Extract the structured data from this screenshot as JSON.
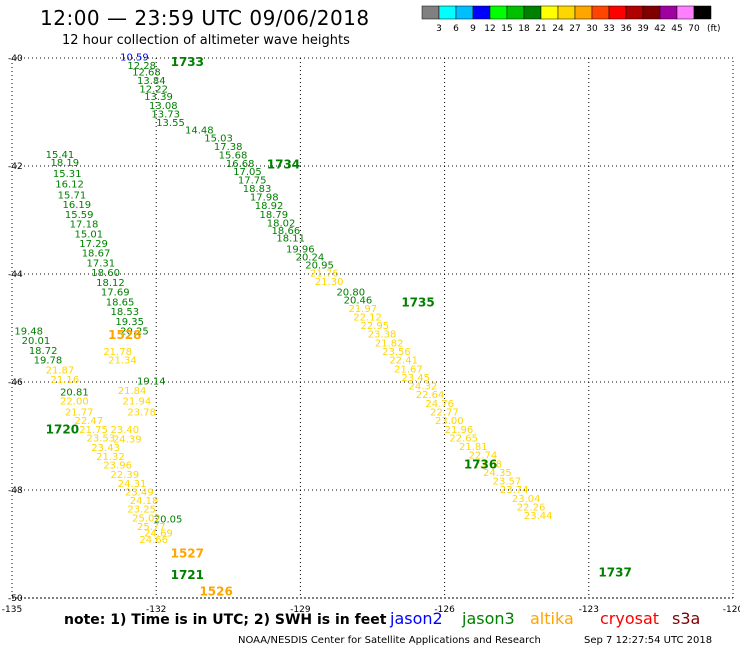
{
  "header": {
    "title": "12:00 — 23:59 UTC 09/06/2018",
    "subtitle": "12 hour collection of altimeter wave heights"
  },
  "legend_scale": {
    "unit": "(ft)",
    "ticks": [
      "3",
      "6",
      "9",
      "12",
      "15",
      "18",
      "21",
      "24",
      "27",
      "30",
      "33",
      "36",
      "39",
      "42",
      "45",
      "70"
    ],
    "colors": [
      "#808080",
      "#00ffff",
      "#00bfff",
      "#0000ff",
      "#00ff00",
      "#00c000",
      "#008000",
      "#ffff00",
      "#ffd700",
      "#ffa500",
      "#ff4500",
      "#ff0000",
      "#b00000",
      "#800000",
      "#a000a0",
      "#ff80ff",
      "#000000"
    ]
  },
  "footer": {
    "note": "note: 1) Time is in UTC; 2) SWH is in feet",
    "credit": "NOAA/NESDIS Center for Satellite Applications and Research",
    "timestamp": "Sep  7 12:27:54 UTC 2018"
  },
  "satellites": [
    {
      "name": "jason2",
      "color": "#0000ff"
    },
    {
      "name": "jason3",
      "color": "#008000"
    },
    {
      "name": "altika",
      "color": "#ffa500"
    },
    {
      "name": "cryosat",
      "color": "#ff0000"
    },
    {
      "name": "s3a",
      "color": "#800000"
    }
  ],
  "chart_data": {
    "type": "scatter",
    "xlim": [
      -135,
      -120
    ],
    "ylim": [
      -50,
      -40
    ],
    "x_ticks": [
      "-135",
      "-132",
      "-129",
      "-126",
      "-123",
      "-120"
    ],
    "y_ticks": [
      "-40",
      "-42",
      "-44",
      "-46",
      "-48",
      "-50"
    ],
    "grid": true,
    "passes": [
      {
        "time": "1733",
        "color": "#008000",
        "lon": -131.7,
        "lat": -40.15
      },
      {
        "time": "1734",
        "color": "#008000",
        "lon": -129.7,
        "lat": -42.05
      },
      {
        "time": "1735",
        "color": "#008000",
        "lon": -126.9,
        "lat": -44.6
      },
      {
        "time": "1736",
        "color": "#008000",
        "lon": -125.6,
        "lat": -47.6
      },
      {
        "time": "1737",
        "color": "#008000",
        "lon": -122.8,
        "lat": -49.6
      },
      {
        "time": "1528",
        "color": "#ffa500",
        "lon": -133.0,
        "lat": -45.2
      },
      {
        "time": "1720",
        "color": "#008000",
        "lon": -134.3,
        "lat": -46.95
      },
      {
        "time": "1527",
        "color": "#ffa500",
        "lon": -131.7,
        "lat": -49.25
      },
      {
        "time": "1721",
        "color": "#008000",
        "lon": -131.7,
        "lat": -49.65
      },
      {
        "time": "1526",
        "color": "#ffa500",
        "lon": -131.1,
        "lat": -49.95
      }
    ],
    "series": [
      {
        "name": "jason3",
        "color": "#008000",
        "points": [
          {
            "lon": -132.6,
            "lat": -40.2,
            "swh": "12.28"
          },
          {
            "lon": -132.5,
            "lat": -40.32,
            "swh": "12.68"
          },
          {
            "lon": -132.4,
            "lat": -40.48,
            "swh": "13.84"
          },
          {
            "lon": -132.35,
            "lat": -40.64,
            "swh": "12.22"
          },
          {
            "lon": -132.25,
            "lat": -40.78,
            "swh": "13.39"
          },
          {
            "lon": -132.15,
            "lat": -40.94,
            "swh": "13.08"
          },
          {
            "lon": -132.1,
            "lat": -41.1,
            "swh": "13.73"
          },
          {
            "lon": -132.0,
            "lat": -41.26,
            "swh": "13.55"
          },
          {
            "lon": -131.4,
            "lat": -41.4,
            "swh": "14.48"
          },
          {
            "lon": -131.0,
            "lat": -41.55,
            "swh": "15.03"
          },
          {
            "lon": -130.8,
            "lat": -41.7,
            "swh": "17.38"
          },
          {
            "lon": -130.7,
            "lat": -41.86,
            "swh": "15.68"
          },
          {
            "lon": -130.55,
            "lat": -42.02,
            "swh": "16.68"
          },
          {
            "lon": -130.4,
            "lat": -42.17,
            "swh": "17.05"
          },
          {
            "lon": -130.3,
            "lat": -42.32,
            "swh": "17.75"
          },
          {
            "lon": -130.2,
            "lat": -42.48,
            "swh": "18.83"
          },
          {
            "lon": -130.05,
            "lat": -42.64,
            "swh": "17.98"
          },
          {
            "lon": -129.95,
            "lat": -42.8,
            "swh": "18.92"
          },
          {
            "lon": -129.85,
            "lat": -42.96,
            "swh": "18.79"
          },
          {
            "lon": -129.7,
            "lat": -43.12,
            "swh": "18.02"
          },
          {
            "lon": -129.6,
            "lat": -43.26,
            "swh": "18.66"
          },
          {
            "lon": -129.5,
            "lat": -43.4,
            "swh": "18.11"
          },
          {
            "lon": -129.3,
            "lat": -43.6,
            "swh": "19.96"
          },
          {
            "lon": -129.1,
            "lat": -43.75,
            "swh": "20.24"
          },
          {
            "lon": -128.9,
            "lat": -43.9,
            "swh": "20.95"
          },
          {
            "lon": -128.25,
            "lat": -44.4,
            "swh": "20.80"
          },
          {
            "lon": -128.1,
            "lat": -44.55,
            "swh": "20.46"
          },
          {
            "lon": -134.3,
            "lat": -41.85,
            "swh": "15.41"
          },
          {
            "lon": -134.2,
            "lat": -42.0,
            "swh": "18.19"
          },
          {
            "lon": -134.15,
            "lat": -42.2,
            "swh": "15.31"
          },
          {
            "lon": -134.1,
            "lat": -42.4,
            "swh": "16.12"
          },
          {
            "lon": -134.05,
            "lat": -42.6,
            "swh": "15.71"
          },
          {
            "lon": -133.95,
            "lat": -42.78,
            "swh": "16.19"
          },
          {
            "lon": -133.9,
            "lat": -42.96,
            "swh": "15.59"
          },
          {
            "lon": -133.8,
            "lat": -43.14,
            "swh": "17.18"
          },
          {
            "lon": -133.7,
            "lat": -43.32,
            "swh": "15.01"
          },
          {
            "lon": -133.6,
            "lat": -43.5,
            "swh": "17.29"
          },
          {
            "lon": -133.55,
            "lat": -43.68,
            "swh": "18.67"
          },
          {
            "lon": -133.45,
            "lat": -43.86,
            "swh": "17.31"
          },
          {
            "lon": -133.35,
            "lat": -44.04,
            "swh": "18.60"
          },
          {
            "lon": -133.25,
            "lat": -44.22,
            "swh": "18.12"
          },
          {
            "lon": -133.15,
            "lat": -44.4,
            "swh": "17.69"
          },
          {
            "lon": -133.05,
            "lat": -44.58,
            "swh": "18.65"
          },
          {
            "lon": -132.95,
            "lat": -44.76,
            "swh": "18.53"
          },
          {
            "lon": -132.85,
            "lat": -44.94,
            "swh": "19.35"
          },
          {
            "lon": -134.95,
            "lat": -45.12,
            "swh": "19.48"
          },
          {
            "lon": -132.75,
            "lat": -45.12,
            "swh": "20.25"
          },
          {
            "lon": -134.8,
            "lat": -45.3,
            "swh": "20.01"
          },
          {
            "lon": -134.65,
            "lat": -45.48,
            "swh": "18.72"
          },
          {
            "lon": -134.55,
            "lat": -45.66,
            "swh": "19.78"
          },
          {
            "lon": -132.4,
            "lat": -46.05,
            "swh": "19.14"
          },
          {
            "lon": -134.0,
            "lat": -46.25,
            "swh": "20.81"
          },
          {
            "lon": -132.05,
            "lat": -48.6,
            "swh": "20.05"
          }
        ]
      },
      {
        "name": "jason2",
        "color": "#0000ff",
        "points": [
          {
            "lon": -132.75,
            "lat": -40.05,
            "swh": "10.59"
          }
        ]
      },
      {
        "name": "altika",
        "color": "#ffd700",
        "points": [
          {
            "lon": -128.8,
            "lat": -44.05,
            "swh": "21.76"
          },
          {
            "lon": -128.7,
            "lat": -44.2,
            "swh": "21.30"
          },
          {
            "lon": -128.0,
            "lat": -44.7,
            "swh": "21.97"
          },
          {
            "lon": -127.9,
            "lat": -44.86,
            "swh": "22.12"
          },
          {
            "lon": -127.75,
            "lat": -45.02,
            "swh": "22.95"
          },
          {
            "lon": -127.6,
            "lat": -45.18,
            "swh": "23.38"
          },
          {
            "lon": -127.45,
            "lat": -45.34,
            "swh": "21.82"
          },
          {
            "lon": -127.3,
            "lat": -45.5,
            "swh": "23.56"
          },
          {
            "lon": -127.15,
            "lat": -45.66,
            "swh": "22.41"
          },
          {
            "lon": -127.05,
            "lat": -45.82,
            "swh": "21.67"
          },
          {
            "lon": -126.9,
            "lat": -45.98,
            "swh": "23.45"
          },
          {
            "lon": -126.75,
            "lat": -46.14,
            "swh": "24.32"
          },
          {
            "lon": -126.6,
            "lat": -46.3,
            "swh": "22.64"
          },
          {
            "lon": -126.4,
            "lat": -46.46,
            "swh": "24.76"
          },
          {
            "lon": -126.3,
            "lat": -46.62,
            "swh": "22.77"
          },
          {
            "lon": -126.2,
            "lat": -46.78,
            "swh": "23.00"
          },
          {
            "lon": -126.0,
            "lat": -46.94,
            "swh": "21.96"
          },
          {
            "lon": -125.9,
            "lat": -47.1,
            "swh": "22.65"
          },
          {
            "lon": -125.7,
            "lat": -47.26,
            "swh": "21.81"
          },
          {
            "lon": -125.5,
            "lat": -47.42,
            "swh": "22.74"
          },
          {
            "lon": -125.4,
            "lat": -47.58,
            "swh": "23.08"
          },
          {
            "lon": -125.2,
            "lat": -47.74,
            "swh": "24.35"
          },
          {
            "lon": -125.0,
            "lat": -47.9,
            "swh": "23.57"
          },
          {
            "lon": -124.85,
            "lat": -48.06,
            "swh": "23.74"
          },
          {
            "lon": -124.6,
            "lat": -48.22,
            "swh": "23.04"
          },
          {
            "lon": -124.5,
            "lat": -48.38,
            "swh": "22.26"
          },
          {
            "lon": -124.35,
            "lat": -48.54,
            "swh": "23.44"
          },
          {
            "lon": -133.1,
            "lat": -45.5,
            "swh": "21.78"
          },
          {
            "lon": -133.0,
            "lat": -45.66,
            "swh": "21.34"
          },
          {
            "lon": -134.3,
            "lat": -45.84,
            "swh": "21.87"
          },
          {
            "lon": -134.2,
            "lat": -46.02,
            "swh": "21.16"
          },
          {
            "lon": -132.8,
            "lat": -46.22,
            "swh": "21.84"
          },
          {
            "lon": -134.0,
            "lat": -46.42,
            "swh": "22.00"
          },
          {
            "lon": -132.7,
            "lat": -46.42,
            "swh": "21.94"
          },
          {
            "lon": -133.9,
            "lat": -46.62,
            "swh": "21.77"
          },
          {
            "lon": -132.6,
            "lat": -46.62,
            "swh": "23.78"
          },
          {
            "lon": -133.7,
            "lat": -46.78,
            "swh": "22.47"
          },
          {
            "lon": -133.6,
            "lat": -46.94,
            "swh": "21.75"
          },
          {
            "lon": -132.95,
            "lat": -46.94,
            "swh": "23.40"
          },
          {
            "lon": -133.45,
            "lat": -47.1,
            "swh": "23.53"
          },
          {
            "lon": -132.9,
            "lat": -47.12,
            "swh": "24.39"
          },
          {
            "lon": -133.35,
            "lat": -47.28,
            "swh": "23.43"
          },
          {
            "lon": -133.25,
            "lat": -47.44,
            "swh": "21.32"
          },
          {
            "lon": -133.1,
            "lat": -47.6,
            "swh": "23.96"
          },
          {
            "lon": -132.95,
            "lat": -47.78,
            "swh": "22.39"
          },
          {
            "lon": -132.8,
            "lat": -47.94,
            "swh": "24.31"
          },
          {
            "lon": -132.65,
            "lat": -48.1,
            "swh": "23.49"
          },
          {
            "lon": -132.55,
            "lat": -48.26,
            "swh": "24.18"
          },
          {
            "lon": -132.6,
            "lat": -48.42,
            "swh": "23.25"
          },
          {
            "lon": -132.5,
            "lat": -48.58,
            "swh": "25.02"
          },
          {
            "lon": -132.4,
            "lat": -48.74,
            "swh": "25.77"
          },
          {
            "lon": -132.25,
            "lat": -48.86,
            "swh": "24.69"
          },
          {
            "lon": -132.35,
            "lat": -48.98,
            "swh": "24.66"
          }
        ]
      }
    ]
  }
}
